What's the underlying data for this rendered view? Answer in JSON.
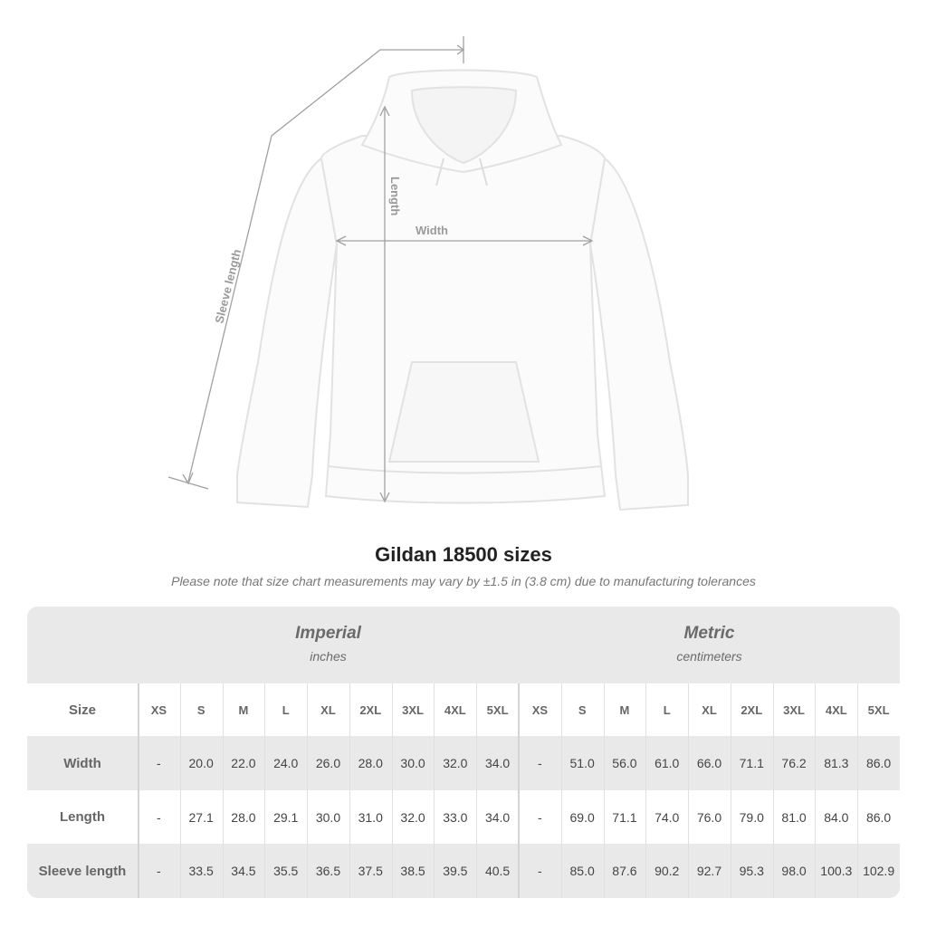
{
  "diagram": {
    "labels": {
      "sleeve": "Sleeve length",
      "length": "Length",
      "width": "Width"
    }
  },
  "title": "Gildan 18500 sizes",
  "note": "Please note that size chart measurements may vary by ±1.5 in (3.8 cm) due to manufacturing tolerances",
  "table": {
    "imperial": {
      "heading": "Imperial",
      "unit": "inches"
    },
    "metric": {
      "heading": "Metric",
      "unit": "centimeters"
    },
    "size_label": "Size",
    "sizes": [
      "XS",
      "S",
      "M",
      "L",
      "XL",
      "2XL",
      "3XL",
      "4XL",
      "5XL"
    ],
    "rows": [
      {
        "label": "Width",
        "imperial": [
          "-",
          "20.0",
          "22.0",
          "24.0",
          "26.0",
          "28.0",
          "30.0",
          "32.0",
          "34.0"
        ],
        "metric": [
          "-",
          "51.0",
          "56.0",
          "61.0",
          "66.0",
          "71.1",
          "76.2",
          "81.3",
          "86.0"
        ]
      },
      {
        "label": "Length",
        "imperial": [
          "-",
          "27.1",
          "28.0",
          "29.1",
          "30.0",
          "31.0",
          "32.0",
          "33.0",
          "34.0"
        ],
        "metric": [
          "-",
          "69.0",
          "71.1",
          "74.0",
          "76.0",
          "79.0",
          "81.0",
          "84.0",
          "86.0"
        ]
      },
      {
        "label": "Sleeve length",
        "imperial": [
          "-",
          "33.5",
          "34.5",
          "35.5",
          "36.5",
          "37.5",
          "38.5",
          "39.5",
          "40.5"
        ],
        "metric": [
          "-",
          "85.0",
          "87.6",
          "90.2",
          "92.7",
          "95.3",
          "98.0",
          "100.3",
          "102.9"
        ]
      }
    ]
  },
  "colors": {
    "band": "#e9e9e9",
    "text": "#444444",
    "measure_line": "#a0a0a0"
  }
}
